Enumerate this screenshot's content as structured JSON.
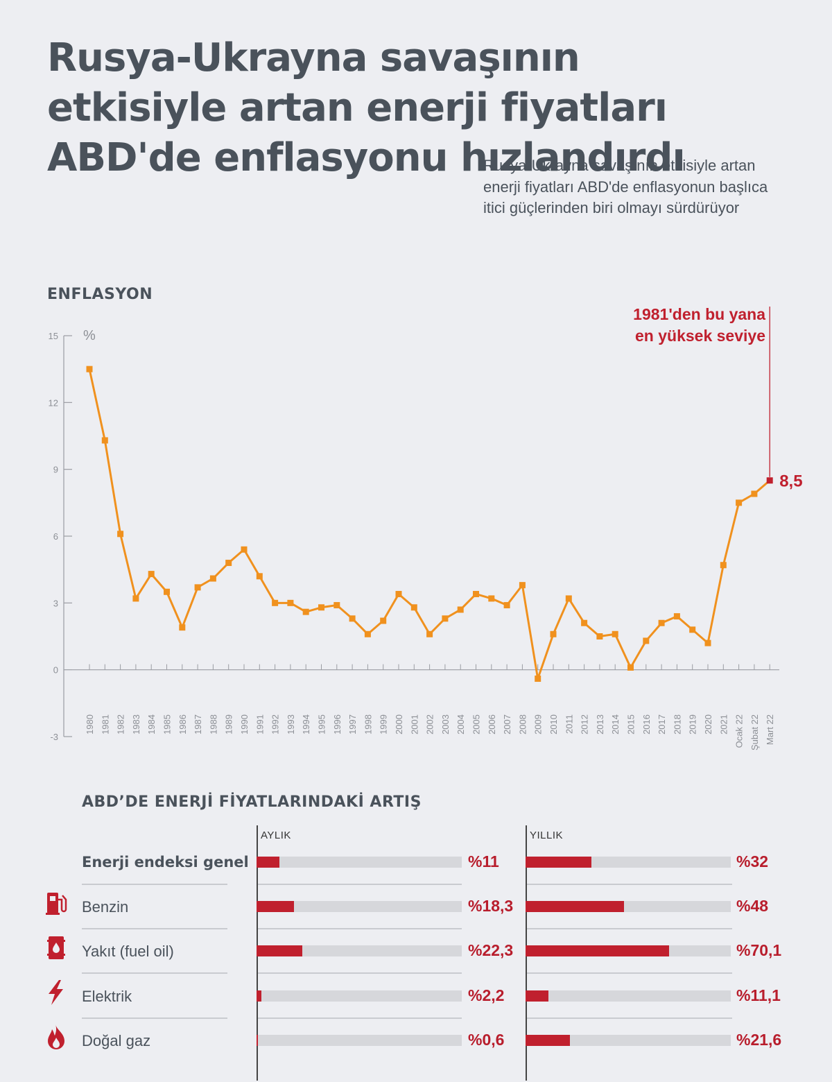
{
  "header": {
    "title": "Rusya-Ukrayna savaşının etkisiyle artan enerji fiyatları ABD'de enflasyonu hızlandırdı",
    "subtitle": "Rusya-Ukrayna savaşının etkisiyle artan enerji fiyatları ABD'de enflasyonun başlıca itici güçlerinden biri olmayı sürdürüyor"
  },
  "chart_data": [
    {
      "type": "line",
      "title": "ENFLASYON",
      "unit": "%",
      "ylim": [
        -3,
        15
      ],
      "yticks": [
        -3,
        0,
        3,
        6,
        9,
        12,
        15
      ],
      "x": [
        "1980",
        "1981",
        "1982",
        "1983",
        "1984",
        "1985",
        "1986",
        "1987",
        "1988",
        "1989",
        "1990",
        "1991",
        "1992",
        "1993",
        "1994",
        "1995",
        "1996",
        "1997",
        "1998",
        "1999",
        "2000",
        "2001",
        "2002",
        "2003",
        "2004",
        "2005",
        "2006",
        "2007",
        "2008",
        "2009",
        "2010",
        "2011",
        "2012",
        "2013",
        "2014",
        "2015",
        "2016",
        "2017",
        "2018",
        "2019",
        "2020",
        "2021",
        "Ocak 22",
        "Şubat 22",
        "Mart 22"
      ],
      "series": [
        {
          "values": [
            13.5,
            10.3,
            6.1,
            3.2,
            4.3,
            3.5,
            1.9,
            3.7,
            4.1,
            4.8,
            5.4,
            4.2,
            3.0,
            3.0,
            2.6,
            2.8,
            2.9,
            2.3,
            1.6,
            2.2,
            3.4,
            2.8,
            1.6,
            2.3,
            2.7,
            3.4,
            3.2,
            2.9,
            3.8,
            -0.4,
            1.6,
            3.2,
            2.1,
            1.5,
            1.6,
            0.1,
            1.3,
            2.1,
            2.4,
            1.8,
            1.2,
            4.7,
            7.5,
            7.9,
            8.5
          ],
          "color": "#f0911e"
        }
      ],
      "highlight_color": "#c0202e",
      "annotation": "1981'den bu yana en yüksek seviye",
      "last_value_label": "8,5"
    },
    {
      "type": "bar",
      "title": "ABD’DE ENERJİ FİYATLARINDAKİ ARTIŞ",
      "columns": [
        "AYLIK",
        "YILLIK"
      ],
      "categories": [
        "Enerji endeksi genel",
        "Benzin",
        "Yakıt (fuel oil)",
        "Elektrik",
        "Doğal gaz"
      ],
      "icons": [
        "",
        "fuel-pump-icon",
        "oil-barrel-icon",
        "lightning-bolt-icon",
        "flame-icon"
      ],
      "series": [
        {
          "name": "AYLIK",
          "values": [
            11,
            18.3,
            22.3,
            2.2,
            0.6
          ],
          "labels": [
            "%11",
            "%18,3",
            "%22,3",
            "%2,2",
            "%0,6"
          ],
          "max": 100
        },
        {
          "name": "YILLIK",
          "values": [
            32,
            48,
            70.1,
            11.1,
            21.6
          ],
          "labels": [
            "%32",
            "%48",
            "%70,1",
            "%11,1",
            "%21,6"
          ],
          "max": 100
        }
      ],
      "bar_color": "#c0202e",
      "track_color": "#d6d7db"
    }
  ]
}
